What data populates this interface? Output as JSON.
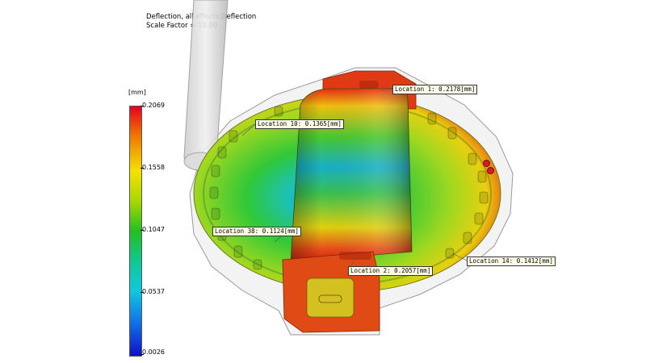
{
  "plot_title": {
    "line1": "Deflection, all effects:Deflection",
    "line2": "Scale Factor = 10.00"
  },
  "legend": {
    "unit": "[mm]",
    "ticks": [
      "0.2069",
      "0.1558",
      "0.1047",
      "0.0537",
      "0.0026"
    ]
  },
  "locations": [
    {
      "id": "loc-1",
      "text": "Location 1:  0.2178[mm]"
    },
    {
      "id": "loc-10",
      "text": "Location 10:  0.1365[mm]"
    },
    {
      "id": "loc-38",
      "text": "Location 38:  0.1124[mm]"
    },
    {
      "id": "loc-2",
      "text": "Location 2:  0.2057[mm]"
    },
    {
      "id": "loc-14",
      "text": "Location 14:  0.1412[mm]"
    }
  ]
}
